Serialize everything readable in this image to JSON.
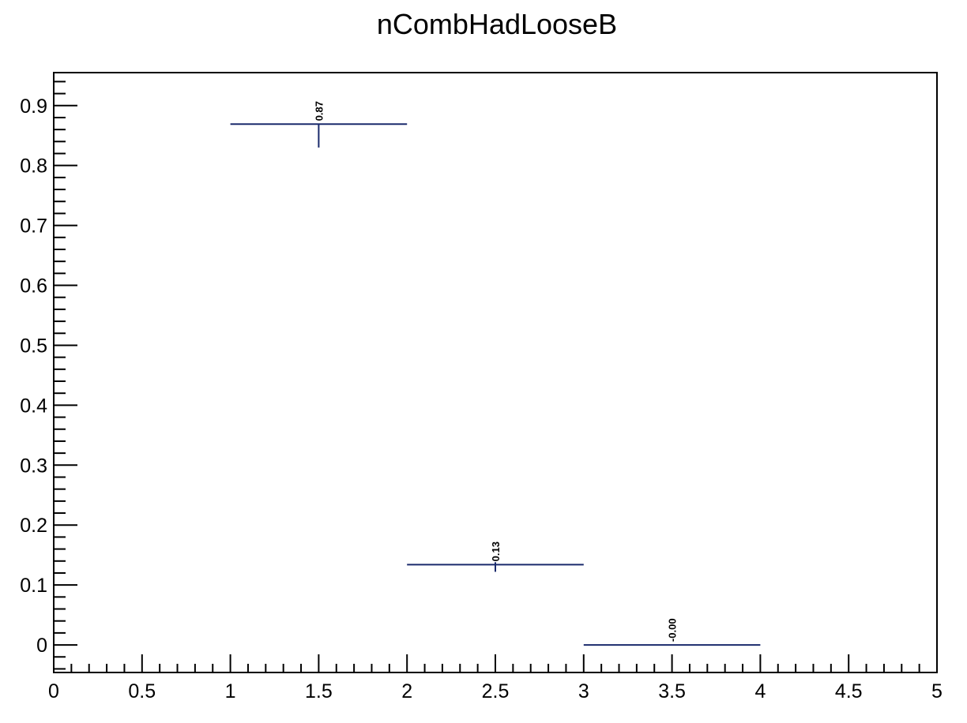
{
  "chart_data": {
    "type": "histogram",
    "title": "nCombHadLooseB",
    "xlabel": "",
    "ylabel": "",
    "xlim": [
      0,
      5
    ],
    "ylim": [
      -0.046,
      0.955
    ],
    "grid": false,
    "legend": false,
    "x_ticks": [
      "0",
      "0.5",
      "1",
      "1.5",
      "2",
      "2.5",
      "3",
      "3.5",
      "4",
      "4.5",
      "5"
    ],
    "y_ticks": [
      "0",
      "0.1",
      "0.2",
      "0.3",
      "0.4",
      "0.5",
      "0.6",
      "0.7",
      "0.8",
      "0.9"
    ],
    "bins": [
      {
        "low": 1,
        "high": 2,
        "center": 1.5,
        "value": 0.869,
        "err_up": 0.0,
        "err_down": 0.039,
        "label": "0.87"
      },
      {
        "low": 2,
        "high": 3,
        "center": 2.5,
        "value": 0.134,
        "err_up": 0.004,
        "err_down": 0.012,
        "label": "0.13"
      },
      {
        "low": 3,
        "high": 4,
        "center": 3.5,
        "value": 0.0,
        "err_up": 0.0,
        "err_down": 0.0,
        "label": "-0.00"
      }
    ],
    "line_color": "#1a2a6c"
  }
}
